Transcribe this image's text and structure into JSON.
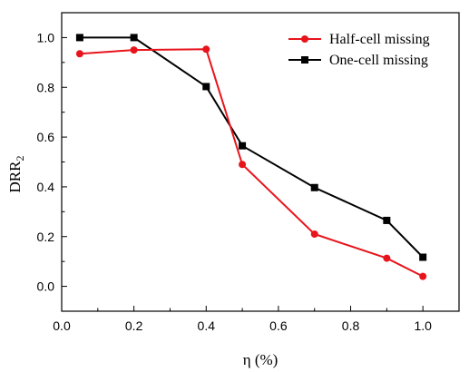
{
  "chart_data": {
    "type": "line",
    "xlabel": "η (%)",
    "ylabel_main": "DRR",
    "ylabel_sub": "2",
    "xlim": [
      0.0,
      1.1
    ],
    "ylim": [
      -0.1,
      1.1
    ],
    "xticks": [
      0.0,
      0.2,
      0.4,
      0.6,
      0.8,
      1.0
    ],
    "xtick_labels": [
      "0.0",
      "0.2",
      "0.4",
      "0.6",
      "0.8",
      "1.0"
    ],
    "yticks": [
      0.0,
      0.2,
      0.4,
      0.6,
      0.8,
      1.0
    ],
    "ytick_labels": [
      "0.0",
      "0.2",
      "0.4",
      "0.6",
      "0.8",
      "1.0"
    ],
    "grid": false,
    "legend_position": "top-right",
    "series": [
      {
        "name": "Half-cell missing",
        "color": "#e8141c",
        "marker": "circle",
        "x": [
          0.05,
          0.2,
          0.4,
          0.5,
          0.7,
          0.9,
          1.0
        ],
        "y": [
          0.935,
          0.95,
          0.953,
          0.49,
          0.21,
          0.113,
          0.04
        ]
      },
      {
        "name": "One-cell missing",
        "color": "#000000",
        "marker": "square",
        "x": [
          0.05,
          0.2,
          0.4,
          0.5,
          0.7,
          0.9,
          1.0
        ],
        "y": [
          1.0,
          1.0,
          0.803,
          0.565,
          0.397,
          0.265,
          0.117
        ]
      }
    ]
  }
}
